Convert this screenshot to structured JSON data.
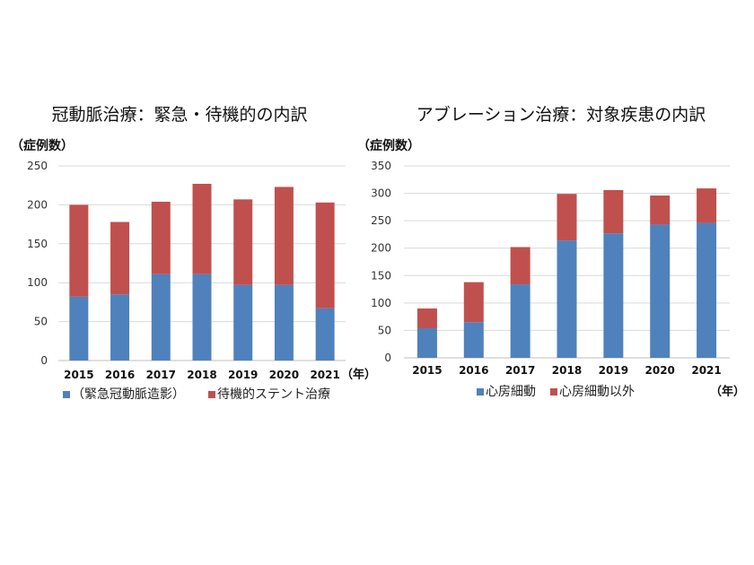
{
  "chart_data": [
    {
      "type": "bar",
      "stacked": true,
      "title": "冠動脈治療：緊急・待機的の内訳",
      "ylabel": "（症例数）",
      "xlabel": "（年）",
      "categories": [
        "2015",
        "2016",
        "2017",
        "2018",
        "2019",
        "2020",
        "2021"
      ],
      "series": [
        {
          "name": "（緊急冠動脈造影）",
          "color": "#4F81BD",
          "values": [
            82,
            85,
            111,
            111,
            97,
            97,
            67
          ]
        },
        {
          "name": "待機的ステント治療",
          "color": "#C0504D",
          "values": [
            118,
            93,
            93,
            116,
            110,
            126,
            136
          ]
        }
      ],
      "ylim": [
        0,
        250
      ],
      "yticks": [
        0,
        50,
        100,
        150,
        200,
        250
      ],
      "grid": true,
      "legend": "bottom"
    },
    {
      "type": "bar",
      "stacked": true,
      "title": "アブレーション治療：対象疾患の内訳",
      "ylabel": "（症例数）",
      "xlabel": "（年）",
      "categories": [
        "2015",
        "2016",
        "2017",
        "2018",
        "2019",
        "2020",
        "2021"
      ],
      "series": [
        {
          "name": "心房細動",
          "color": "#4F81BD",
          "values": [
            54,
            65,
            134,
            214,
            227,
            243,
            246
          ]
        },
        {
          "name": "心房細動以外",
          "color": "#C0504D",
          "values": [
            36,
            73,
            68,
            85,
            79,
            53,
            63
          ]
        }
      ],
      "ylim": [
        0,
        350
      ],
      "yticks": [
        0,
        50,
        100,
        150,
        200,
        250,
        300,
        350
      ],
      "grid": true,
      "legend": "bottom"
    }
  ]
}
